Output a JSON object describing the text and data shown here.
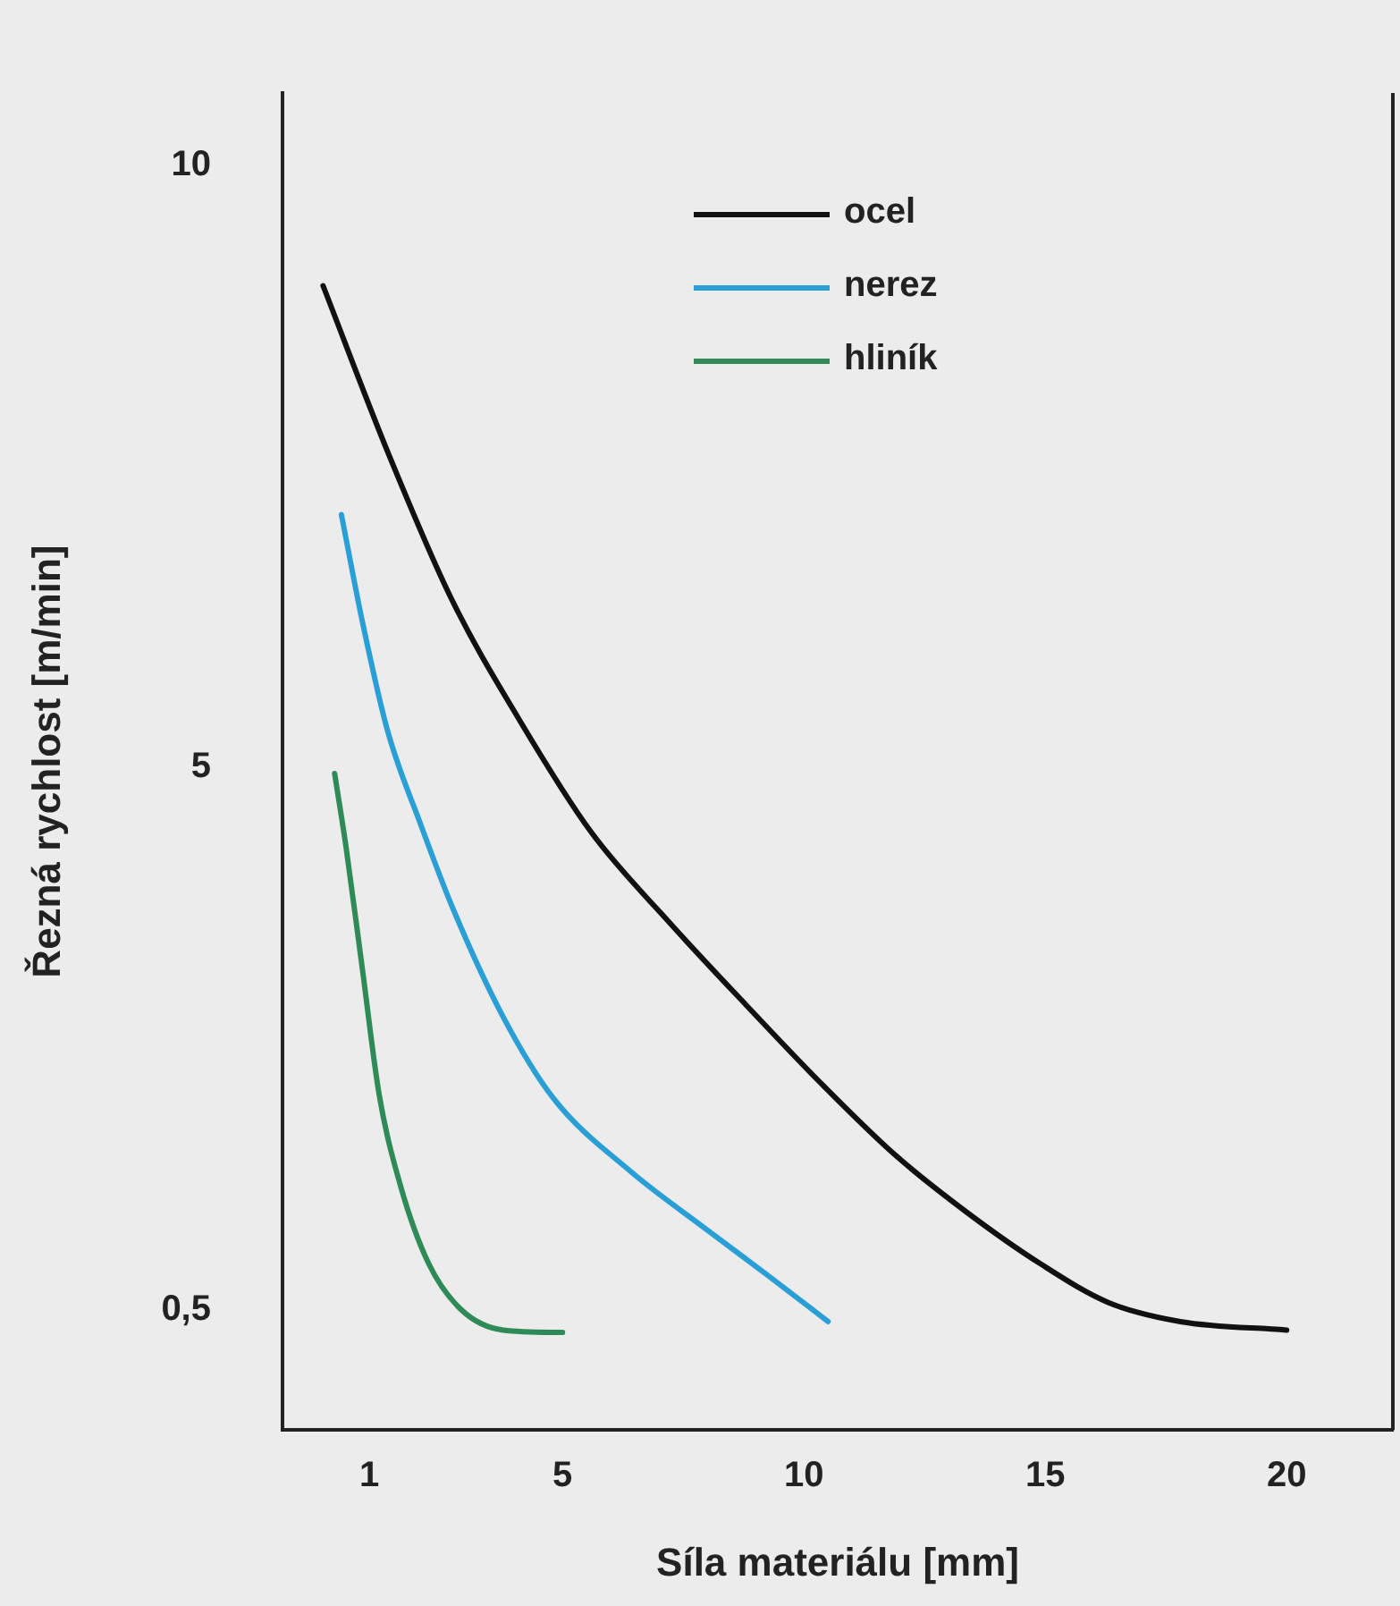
{
  "chart_data": {
    "type": "line",
    "xlabel": "Síla materiálu [mm]",
    "ylabel": "Řezná rychlost [m/min]",
    "xlim": [
      -0.8,
      22.2
    ],
    "xticks": [
      1,
      5,
      10,
      15,
      20
    ],
    "ylim": [
      -0.5,
      10.6
    ],
    "yticks": [
      {
        "value": 0.5,
        "label": "0,5"
      },
      5,
      10
    ],
    "grid": false,
    "legend": "top right",
    "marker": "none",
    "line_style": "solid",
    "series": [
      {
        "name": "ocel",
        "color": "#111111",
        "x": [
          0.04,
          1.4,
          2.7,
          4.1,
          5.6,
          7.2,
          8.8,
          10.4,
          11.9,
          13.4,
          14.9,
          16.3,
          17.8,
          20
        ],
        "values": [
          9.0,
          7.6,
          6.4,
          5.4,
          4.46,
          3.72,
          3.03,
          2.36,
          1.78,
          1.3,
          0.88,
          0.56,
          0.4,
          0.33
        ]
      },
      {
        "name": "nerez",
        "color": "#2a9fd6",
        "x": [
          0.42,
          0.86,
          1.38,
          2.06,
          2.74,
          3.77,
          4.8,
          6.4,
          8.0,
          9.2,
          10.5
        ],
        "values": [
          7.1,
          6.2,
          5.3,
          4.53,
          3.82,
          2.93,
          2.26,
          1.65,
          1.16,
          0.8,
          0.4
        ]
      },
      {
        "name": "hliník",
        "color": "#2e8b57",
        "x": [
          0.28,
          0.52,
          0.86,
          1.2,
          1.65,
          2.23,
          2.9,
          3.77,
          5
        ],
        "values": [
          4.95,
          4.33,
          3.31,
          2.29,
          1.52,
          0.88,
          0.5,
          0.33,
          0.31
        ]
      }
    ]
  }
}
